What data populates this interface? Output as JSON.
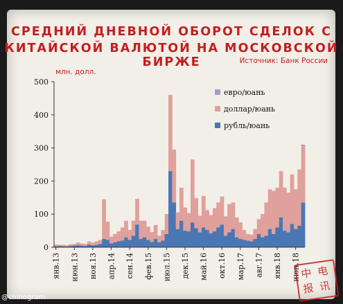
{
  "header": {
    "title_line1": "СРЕДНИЙ ДНЕВНОЙ ОБОРОТ СДЕЛОК С",
    "title_line2": "КИТАЙСКОЙ ВАЛЮТОЙ НА МОСКОВСКОЙ БИРЖЕ",
    "source": "Источник: Банк России"
  },
  "credit": "@chinogram",
  "stamp": {
    "chars": [
      "电",
      "讯",
      "报",
      "中"
    ]
  },
  "colors": {
    "euro_yuan": "#a99bc6",
    "dollar_yuan": "#e0a09b",
    "ruble_yuan": "#4a77b4",
    "title": "#c21f1f"
  },
  "chart_data": {
    "type": "bar",
    "stacked": true,
    "unit_label": "млн. долл.",
    "ylim": [
      0,
      500
    ],
    "yticks": [
      0,
      100,
      200,
      300,
      400,
      500
    ],
    "grid": false,
    "legend_position": "top-right",
    "x_tick_labels": [
      "янв.13",
      "июн.13",
      "ноя.13",
      "апр.14",
      "сен.14",
      "фев.15",
      "июл.15",
      "дек.15",
      "май.16",
      "окт.16",
      "мар.17",
      "авг.17",
      "янв.18",
      "июн.18"
    ],
    "x_tick_index": [
      0,
      5,
      10,
      15,
      20,
      25,
      30,
      35,
      40,
      45,
      50,
      55,
      60,
      65
    ],
    "series": [
      {
        "name": "рубль/юань",
        "values": [
          3,
          4,
          3,
          2,
          4,
          5,
          6,
          5,
          4,
          8,
          6,
          7,
          10,
          25,
          22,
          12,
          15,
          18,
          20,
          30,
          22,
          35,
          68,
          25,
          30,
          22,
          16,
          25,
          15,
          20,
          40,
          230,
          135,
          55,
          80,
          50,
          48,
          75,
          58,
          45,
          60,
          52,
          42,
          48,
          60,
          68,
          35,
          45,
          55,
          30,
          25,
          22,
          20,
          18,
          25,
          40,
          30,
          35,
          55,
          40,
          60,
          90,
          50,
          45,
          70,
          55,
          65,
          135
        ]
      },
      {
        "name": "доллар/юань",
        "values": [
          5,
          3,
          4,
          4,
          5,
          5,
          8,
          6,
          6,
          9,
          8,
          11,
          12,
          120,
          55,
          20,
          25,
          30,
          40,
          50,
          30,
          45,
          78,
          55,
          50,
          40,
          30,
          42,
          20,
          32,
          60,
          230,
          160,
          50,
          100,
          70,
          55,
          190,
          90,
          50,
          95,
          60,
          55,
          70,
          75,
          85,
          58,
          85,
          80,
          60,
          50,
          30,
          20,
          20,
          30,
          45,
          70,
          100,
          120,
          130,
          120,
          140,
          130,
          120,
          150,
          120,
          170,
          170
        ]
      },
      {
        "name": "евро/юань",
        "values": [
          0,
          0,
          0,
          0,
          0,
          0,
          0,
          0,
          0,
          0,
          0,
          0,
          0,
          0,
          0,
          0,
          0,
          0,
          0,
          0,
          0,
          0,
          0,
          0,
          0,
          0,
          0,
          0,
          0,
          0,
          0,
          0,
          0,
          0,
          0,
          0,
          0,
          0,
          0,
          0,
          0,
          0,
          0,
          0,
          0,
          0,
          0,
          0,
          0,
          0,
          0,
          0,
          0,
          0,
          0,
          0,
          0,
          0,
          0,
          0,
          0,
          0,
          0,
          0,
          0,
          0,
          0,
          5
        ]
      }
    ]
  }
}
